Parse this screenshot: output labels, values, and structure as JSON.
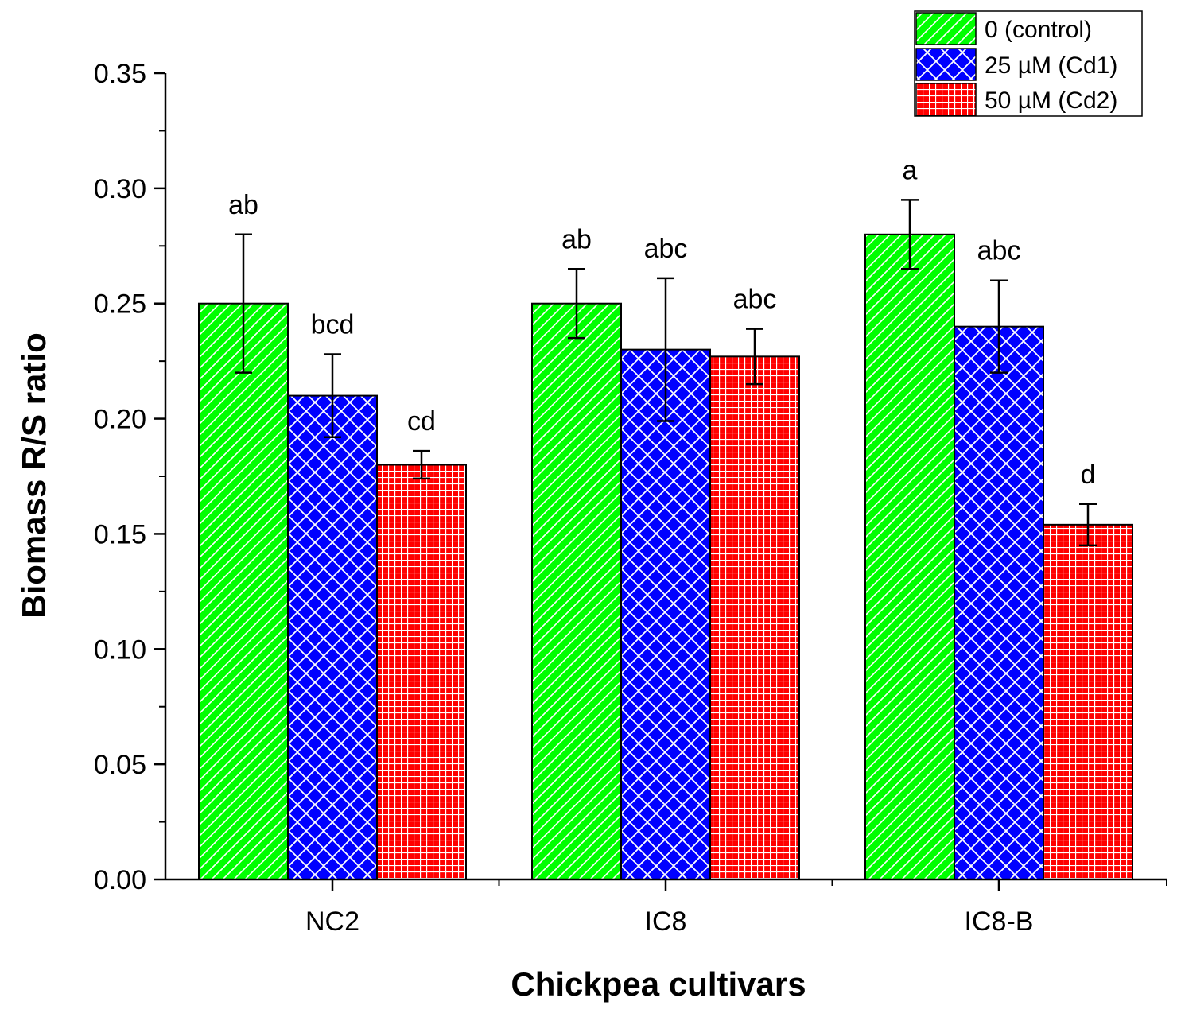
{
  "chart_data": {
    "type": "bar",
    "title": "",
    "xlabel": "Chickpea cultivars",
    "ylabel": "Biomass R/S ratio",
    "ylim": [
      0,
      0.35
    ],
    "yticks": [
      "0.00",
      "0.05",
      "0.10",
      "0.15",
      "0.20",
      "0.25",
      "0.30",
      "0.35"
    ],
    "categories": [
      "NC2",
      "IC8",
      "IC8-B"
    ],
    "legend_position": "top-right",
    "series": [
      {
        "name": "0 (control)",
        "color": "#00ff00",
        "pattern": "diagonal-lines",
        "values": [
          0.25,
          0.25,
          0.28
        ],
        "errors": [
          0.03,
          0.015,
          0.015
        ],
        "letters": [
          "ab",
          "ab",
          "a"
        ]
      },
      {
        "name": "25 µM (Cd1)",
        "color": "#0000ff",
        "pattern": "cross-hatch",
        "values": [
          0.21,
          0.23,
          0.24
        ],
        "errors": [
          0.018,
          0.031,
          0.02
        ],
        "letters": [
          "bcd",
          "abc",
          "abc"
        ]
      },
      {
        "name": "50 µM (Cd2)",
        "color": "#ff0000",
        "pattern": "grid",
        "values": [
          0.18,
          0.227,
          0.154
        ],
        "errors": [
          0.006,
          0.012,
          0.009
        ],
        "letters": [
          "cd",
          "abc",
          "d"
        ]
      }
    ]
  }
}
